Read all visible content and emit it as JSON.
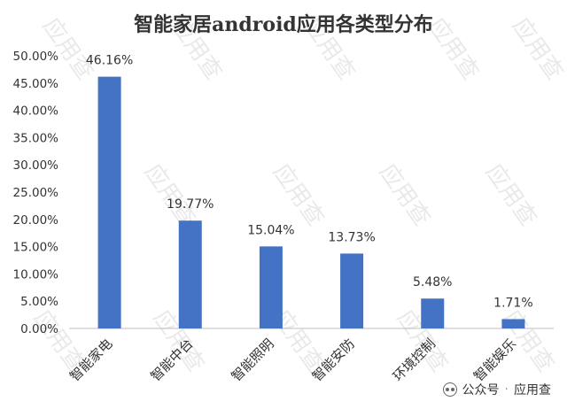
{
  "chart_data": {
    "type": "bar",
    "title": "智能家居android应用各类型分布",
    "categories": [
      "智能家电",
      "智能中台",
      "智能照明",
      "智能安防",
      "环境控制",
      "智能娱乐"
    ],
    "values": [
      46.16,
      19.77,
      15.04,
      13.73,
      5.48,
      1.71
    ],
    "data_labels": [
      "46.16%",
      "19.77%",
      "15.04%",
      "13.73%",
      "5.48%",
      "1.71%"
    ],
    "ylim": [
      0,
      50
    ],
    "yticks": [
      "0.00%",
      "5.00%",
      "10.00%",
      "15.00%",
      "20.00%",
      "25.00%",
      "30.00%",
      "35.00%",
      "40.00%",
      "45.00%",
      "50.00%"
    ],
    "xlabel": "",
    "ylabel": "",
    "grid": false,
    "legend": "none",
    "bar_color": "#4472C4"
  },
  "watermark": {
    "text": "应用查"
  },
  "footer": {
    "icon": "wechat-official-account-icon",
    "account_label": "公众号",
    "separator": "·",
    "account_name": "应用查"
  }
}
